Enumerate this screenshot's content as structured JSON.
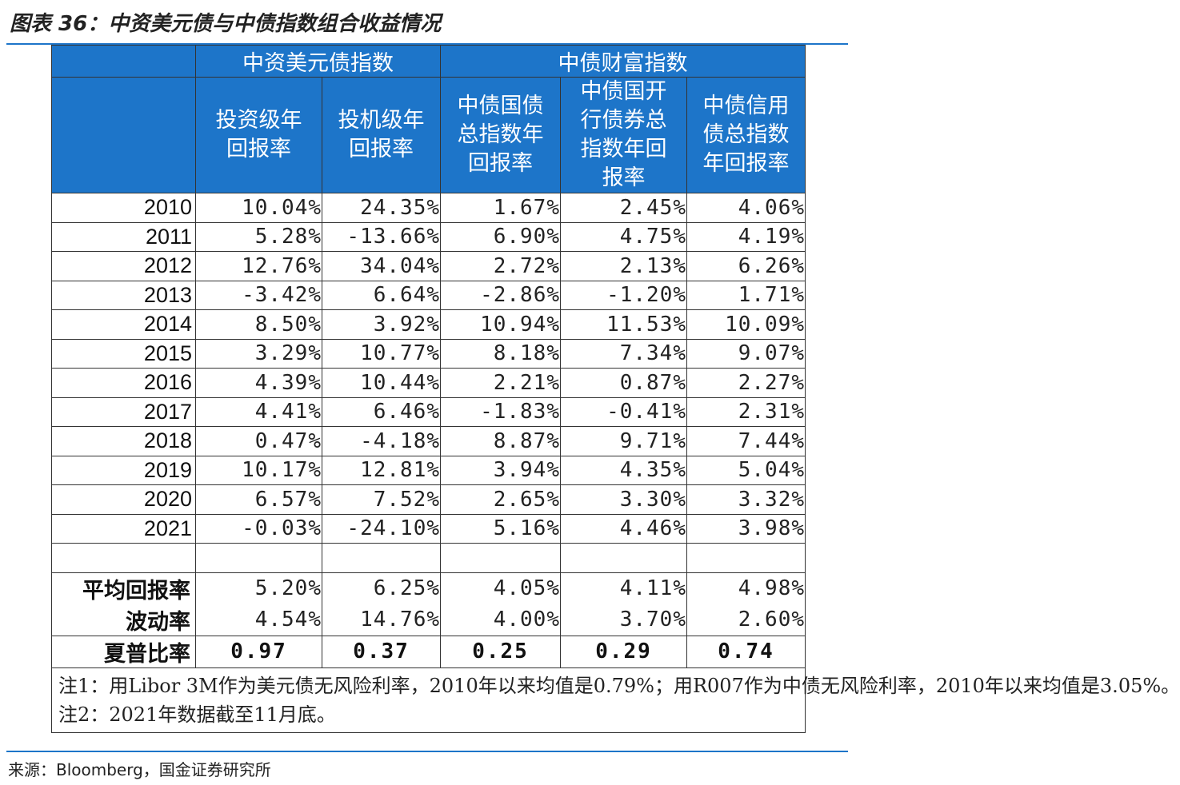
{
  "title": "图表 36：中资美元债与中债指数组合收益情况",
  "table": {
    "group_headers": [
      "",
      "中资美元债指数",
      "中债财富指数"
    ],
    "sub_headers": [
      "",
      "投资级年\n回报率",
      "投机级年\n回报率",
      "中债国债\n总指数年\n回报率",
      "中债国开\n行债券总\n指数年回\n报率",
      "中债信用\n债总指数\n年回报率"
    ],
    "rows": [
      {
        "year": "2010",
        "values": [
          "10.04%",
          "24.35%",
          "1.67%",
          "2.45%",
          "4.06%"
        ]
      },
      {
        "year": "2011",
        "values": [
          "5.28%",
          "-13.66%",
          "6.90%",
          "4.75%",
          "4.19%"
        ]
      },
      {
        "year": "2012",
        "values": [
          "12.76%",
          "34.04%",
          "2.72%",
          "2.13%",
          "6.26%"
        ]
      },
      {
        "year": "2013",
        "values": [
          "-3.42%",
          "6.64%",
          "-2.86%",
          "-1.20%",
          "1.71%"
        ]
      },
      {
        "year": "2014",
        "values": [
          "8.50%",
          "3.92%",
          "10.94%",
          "11.53%",
          "10.09%"
        ]
      },
      {
        "year": "2015",
        "values": [
          "3.29%",
          "10.77%",
          "8.18%",
          "7.34%",
          "9.07%"
        ]
      },
      {
        "year": "2016",
        "values": [
          "4.39%",
          "10.44%",
          "2.21%",
          "0.87%",
          "2.27%"
        ]
      },
      {
        "year": "2017",
        "values": [
          "4.41%",
          "6.46%",
          "-1.83%",
          "-0.41%",
          "2.31%"
        ]
      },
      {
        "year": "2018",
        "values": [
          "0.47%",
          "-4.18%",
          "8.87%",
          "9.71%",
          "7.44%"
        ]
      },
      {
        "year": "2019",
        "values": [
          "10.17%",
          "12.81%",
          "3.94%",
          "4.35%",
          "5.04%"
        ]
      },
      {
        "year": "2020",
        "values": [
          "6.57%",
          "7.52%",
          "2.65%",
          "3.30%",
          "3.32%"
        ]
      },
      {
        "year": "2021",
        "values": [
          "-0.03%",
          "-24.10%",
          "5.16%",
          "4.46%",
          "3.98%"
        ]
      }
    ],
    "stats": [
      {
        "label": "平均回报率",
        "values": [
          "5.20%",
          "6.25%",
          "4.05%",
          "4.11%",
          "4.98%"
        ]
      },
      {
        "label": "波动率",
        "values": [
          "4.54%",
          "14.76%",
          "4.00%",
          "3.70%",
          "2.60%"
        ]
      },
      {
        "label": "夏普比率",
        "values": [
          "0.97",
          "0.37",
          "0.25",
          "0.29",
          "0.74"
        ]
      }
    ],
    "notes": [
      "注1：用Libor 3M作为美元债无风险利率，2010年以来均值是0.79%；用R007作为中债无风险利率，2010年以来均值是3.05%。",
      "注2：2021年数据截至11月底。"
    ]
  },
  "source": "来源：Bloomberg，国金证券研究所",
  "colors": {
    "header_bg": "#1d75c9",
    "header_text": "#ffffff",
    "rule": "#1d75c9"
  }
}
